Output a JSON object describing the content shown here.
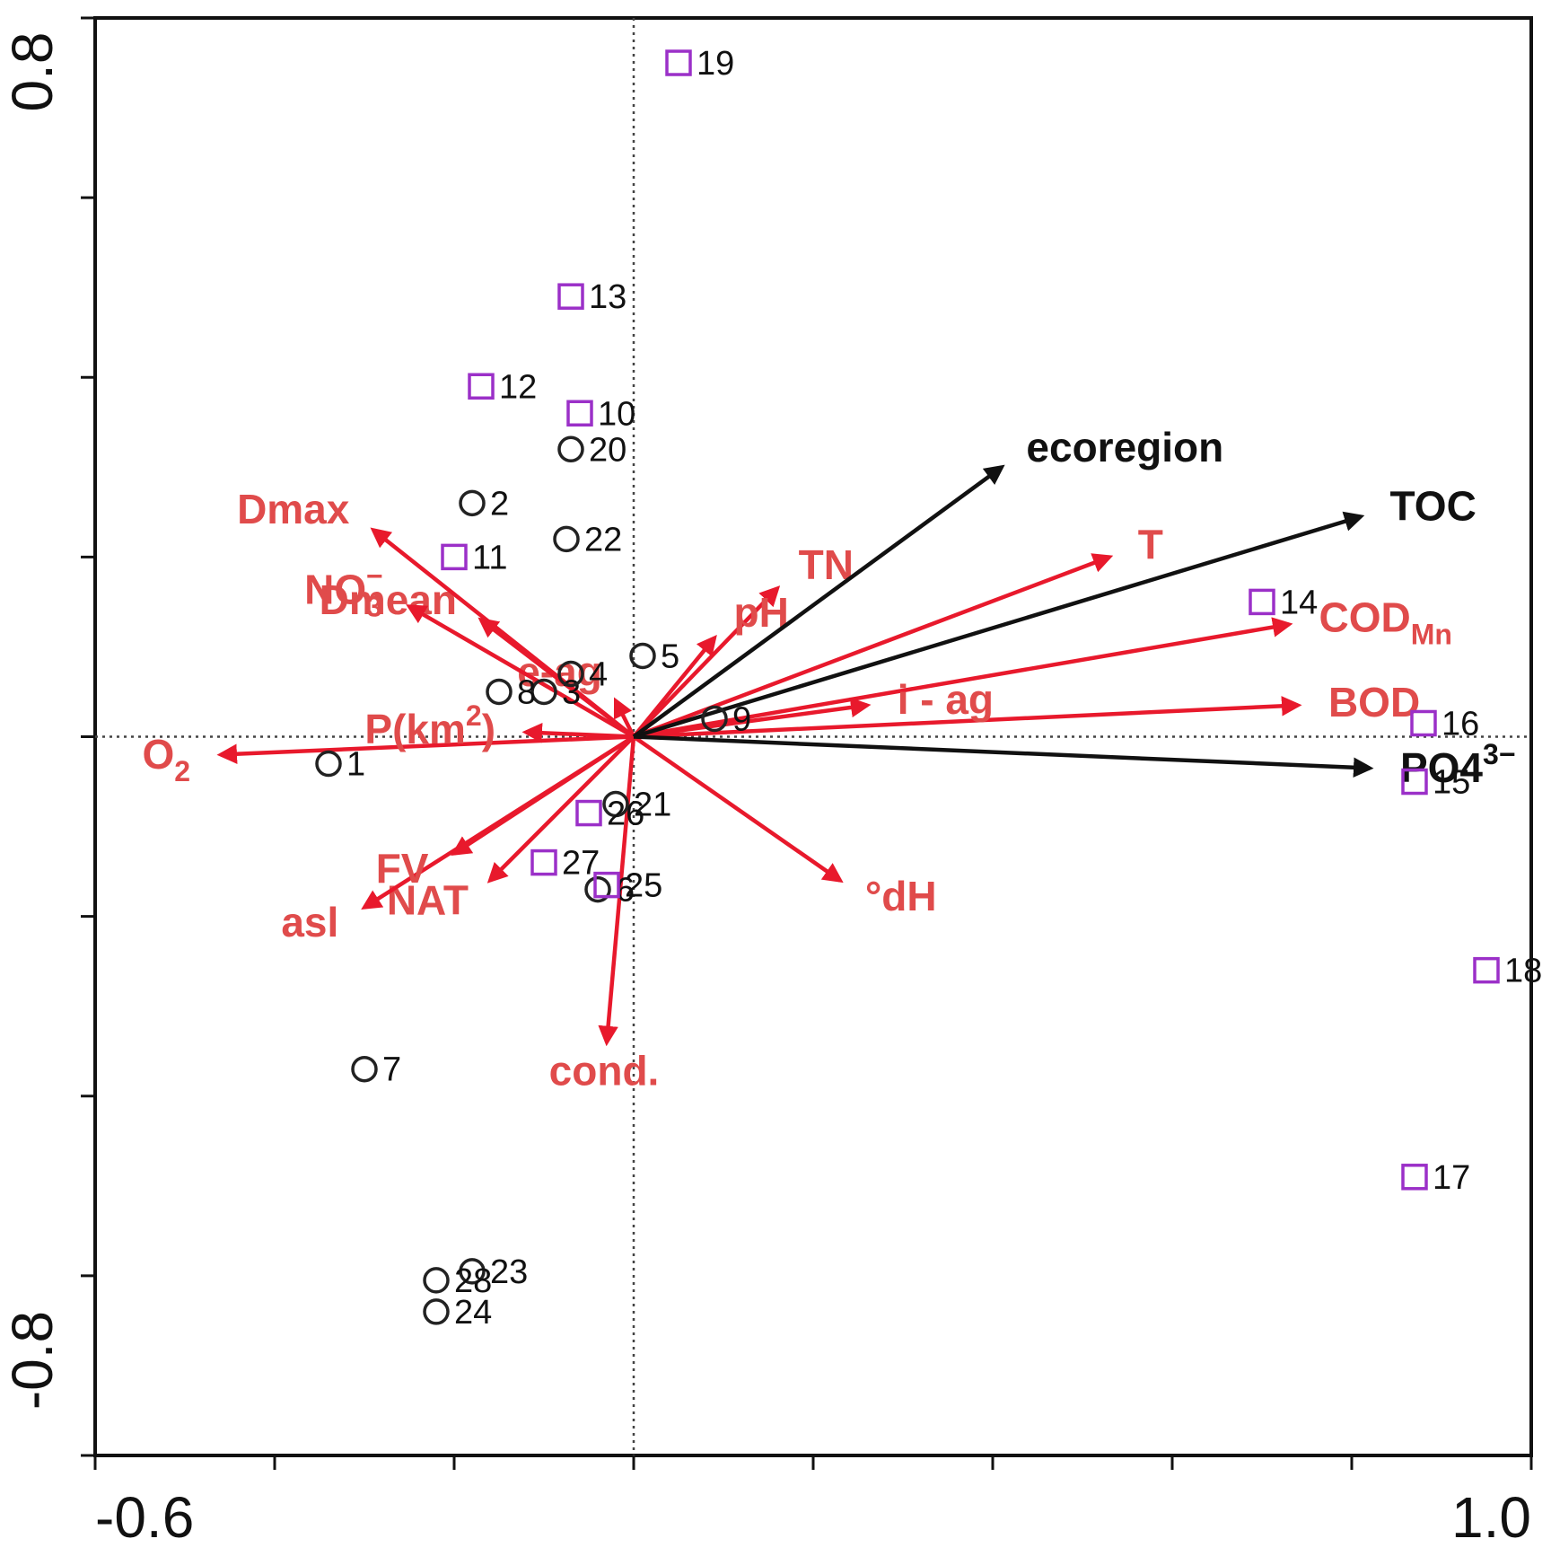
{
  "chart_data": {
    "type": "scatter",
    "title": "",
    "xlabel": "",
    "ylabel": "",
    "xlim": [
      -0.6,
      1.0
    ],
    "ylim": [
      -0.8,
      0.8
    ],
    "x_tick_labels": [
      "-0.6",
      "1.0"
    ],
    "y_tick_labels": [
      "0.8",
      "-0.8"
    ],
    "grid": false,
    "colors": {
      "env_arrow": "#e8192c",
      "env_label": "#e04b4b",
      "main_arrow": "#111111",
      "square_marker": "#9b30c8",
      "circle_marker": "#222222"
    },
    "sites": [
      {
        "id": "1",
        "shape": "circle",
        "x": -0.34,
        "y": -0.03
      },
      {
        "id": "2",
        "shape": "circle",
        "x": -0.18,
        "y": 0.26
      },
      {
        "id": "3",
        "shape": "circle",
        "x": -0.1,
        "y": 0.05
      },
      {
        "id": "4",
        "shape": "circle",
        "x": -0.07,
        "y": 0.07
      },
      {
        "id": "5",
        "shape": "circle",
        "x": 0.01,
        "y": 0.09
      },
      {
        "id": "6",
        "shape": "circle",
        "x": -0.04,
        "y": -0.17
      },
      {
        "id": "7",
        "shape": "circle",
        "x": -0.3,
        "y": -0.37
      },
      {
        "id": "8",
        "shape": "circle",
        "x": -0.15,
        "y": 0.05
      },
      {
        "id": "9",
        "shape": "circle",
        "x": 0.09,
        "y": 0.02
      },
      {
        "id": "10",
        "shape": "square",
        "x": -0.06,
        "y": 0.36
      },
      {
        "id": "11",
        "shape": "square",
        "x": -0.2,
        "y": 0.2
      },
      {
        "id": "12",
        "shape": "square",
        "x": -0.17,
        "y": 0.39
      },
      {
        "id": "13",
        "shape": "square",
        "x": -0.07,
        "y": 0.49
      },
      {
        "id": "14",
        "shape": "square",
        "x": 0.7,
        "y": 0.15
      },
      {
        "id": "15",
        "shape": "square",
        "x": 0.87,
        "y": -0.05
      },
      {
        "id": "16",
        "shape": "square",
        "x": 0.88,
        "y": 0.015
      },
      {
        "id": "17",
        "shape": "square",
        "x": 0.87,
        "y": -0.49
      },
      {
        "id": "18",
        "shape": "square",
        "x": 0.95,
        "y": -0.26
      },
      {
        "id": "19",
        "shape": "square",
        "x": 0.05,
        "y": 0.75
      },
      {
        "id": "20",
        "shape": "circle",
        "x": -0.07,
        "y": 0.32
      },
      {
        "id": "21",
        "shape": "circle",
        "x": -0.02,
        "y": -0.075
      },
      {
        "id": "22",
        "shape": "circle",
        "x": -0.075,
        "y": 0.22
      },
      {
        "id": "23",
        "shape": "circle",
        "x": -0.18,
        "y": -0.595
      },
      {
        "id": "24",
        "shape": "circle",
        "x": -0.22,
        "y": -0.64
      },
      {
        "id": "25",
        "shape": "square",
        "x": -0.03,
        "y": -0.165
      },
      {
        "id": "26",
        "shape": "square",
        "x": -0.05,
        "y": -0.085
      },
      {
        "id": "27",
        "shape": "square",
        "x": -0.1,
        "y": -0.14
      },
      {
        "id": "28",
        "shape": "circle",
        "x": -0.22,
        "y": -0.605
      }
    ],
    "main_vectors": [
      {
        "name": "ecoregion",
        "x": 0.41,
        "y": 0.3
      },
      {
        "name": "TOC",
        "x": 0.81,
        "y": 0.245
      },
      {
        "name": "PO4",
        "sup": "3−",
        "x": 0.82,
        "y": -0.035
      }
    ],
    "env_vectors": [
      {
        "name": "T",
        "x": 0.53,
        "y": 0.2
      },
      {
        "name": "COD",
        "sub": "Mn",
        "x": 0.73,
        "y": 0.125
      },
      {
        "name": "BOD",
        "x": 0.74,
        "y": 0.035
      },
      {
        "name": "i - ag",
        "x": 0.26,
        "y": 0.035
      },
      {
        "name": "TN",
        "x": 0.16,
        "y": 0.165
      },
      {
        "name": "pH",
        "x": 0.09,
        "y": 0.11
      },
      {
        "name": "°dH",
        "x": 0.23,
        "y": -0.16
      },
      {
        "name": "cond.",
        "x": -0.03,
        "y": -0.34
      },
      {
        "name": "NAT",
        "x": -0.16,
        "y": -0.16
      },
      {
        "name": "asl",
        "x": -0.3,
        "y": -0.19
      },
      {
        "name": "FV",
        "x": -0.2,
        "y": -0.13
      },
      {
        "name": "O",
        "sub": "2",
        "x": -0.46,
        "y": -0.02
      },
      {
        "name": "P(km",
        "sup": "2",
        "tail": ")",
        "x": -0.12,
        "y": 0.005
      },
      {
        "name": "e-ag",
        "x": -0.02,
        "y": 0.04
      },
      {
        "name": "Dmean",
        "x": -0.17,
        "y": 0.13
      },
      {
        "name": "NO",
        "sub": "3",
        "sup": "−",
        "x": -0.25,
        "y": 0.145
      },
      {
        "name": "Dmax",
        "x": -0.29,
        "y": 0.23
      }
    ]
  }
}
